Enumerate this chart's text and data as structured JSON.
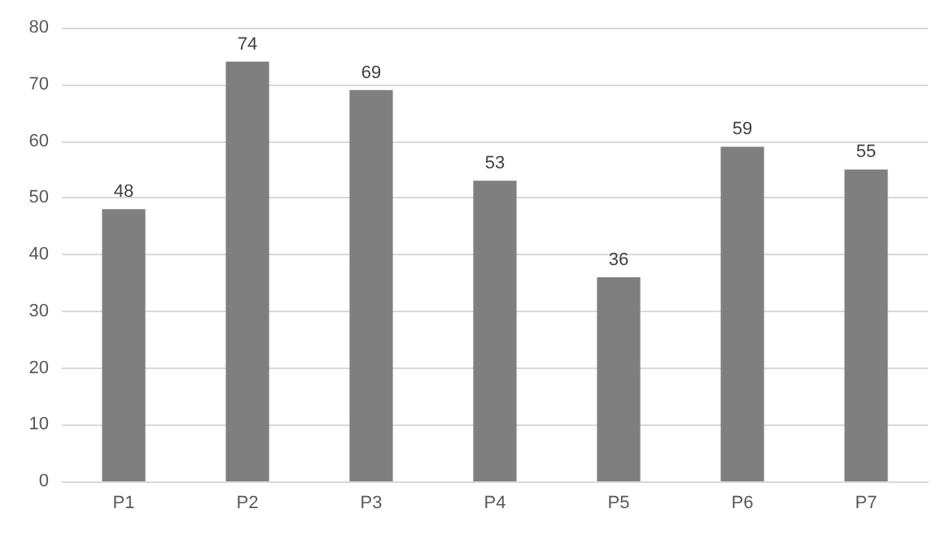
{
  "chart_data": {
    "type": "bar",
    "categories": [
      "P1",
      "P2",
      "P3",
      "P4",
      "P5",
      "P6",
      "P7"
    ],
    "values": [
      48,
      74,
      69,
      53,
      36,
      59,
      55
    ],
    "color": "#7f7f7f",
    "ylim": [
      0,
      80
    ],
    "yticks": [
      0,
      10,
      20,
      30,
      40,
      50,
      60,
      70,
      80
    ],
    "grid": "y",
    "data_labels": true
  }
}
